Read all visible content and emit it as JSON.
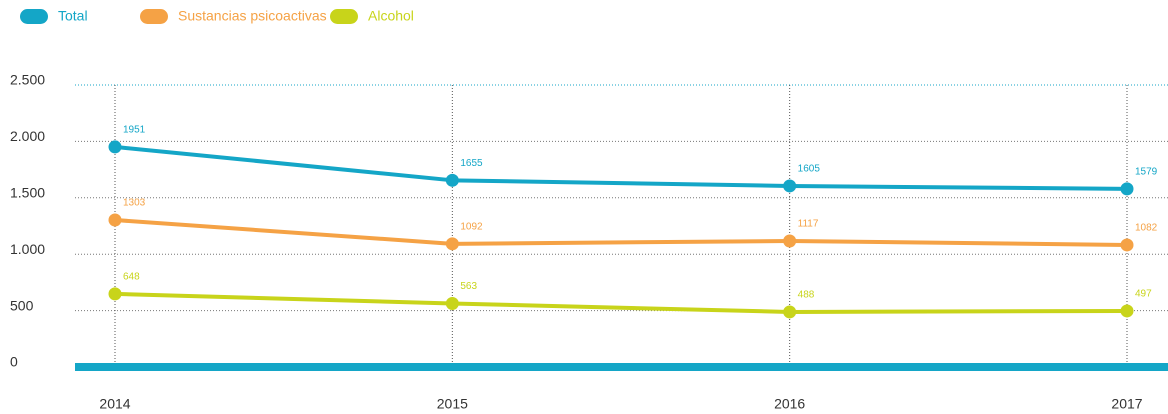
{
  "chart_data": {
    "type": "line",
    "categories": [
      "2014",
      "2015",
      "2016",
      "2017"
    ],
    "series": [
      {
        "name": "Total",
        "color": "#14a6c7",
        "values": [
          1951,
          1655,
          1605,
          1579
        ]
      },
      {
        "name": "Sustancias psicoactivas",
        "color": "#f5a245",
        "values": [
          1303,
          1092,
          1117,
          1082
        ]
      },
      {
        "name": "Alcohol",
        "color": "#c8d41a",
        "values": [
          648,
          563,
          488,
          497
        ]
      }
    ],
    "ylim": [
      0,
      2500
    ],
    "yticks": [
      0,
      500,
      {
        "value": 1000,
        "label": "1.000"
      },
      {
        "value": 1500,
        "label": "1.500"
      },
      {
        "value": 2000,
        "label": "2.000"
      },
      {
        "value": 2500,
        "label": "2.500"
      }
    ],
    "grid": true,
    "legend": "top-left"
  }
}
